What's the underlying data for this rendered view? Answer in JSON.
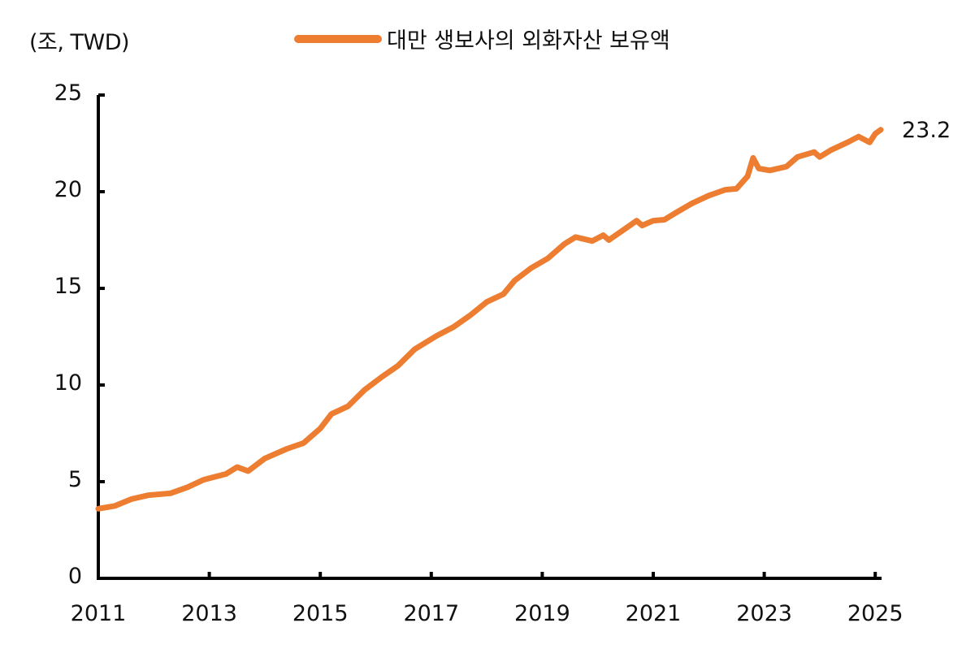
{
  "unit_label": "(조, TWD)",
  "legend": {
    "label": "대만 생보사의 외화자산 보유액",
    "color": "#ED7D31"
  },
  "end_label": "23.2",
  "y_ticks": [
    "0",
    "5",
    "10",
    "15",
    "20",
    "25"
  ],
  "x_ticks": [
    "2011",
    "2013",
    "2015",
    "2017",
    "2019",
    "2021",
    "2023",
    "2025"
  ],
  "chart_data": {
    "type": "line",
    "title": "",
    "xlabel": "",
    "ylabel": "(조, TWD)",
    "ylim": [
      0,
      25
    ],
    "xlim": [
      2011,
      2025.1
    ],
    "grid": false,
    "legend_position": "top",
    "x_tick_labels": [
      "2011",
      "2013",
      "2015",
      "2017",
      "2019",
      "2021",
      "2023",
      "2025"
    ],
    "y_tick_labels": [
      "0",
      "5",
      "10",
      "15",
      "20",
      "25"
    ],
    "annotations": [
      {
        "text": "23.2",
        "x": 2025.1,
        "y": 23.2
      }
    ],
    "series": [
      {
        "name": "대만 생보사의 외화자산 보유액",
        "color": "#ED7D31",
        "x": [
          2011.0,
          2011.3,
          2011.6,
          2011.9,
          2012.3,
          2012.6,
          2012.9,
          2013.3,
          2013.5,
          2013.7,
          2014.0,
          2014.4,
          2014.7,
          2015.0,
          2015.2,
          2015.5,
          2015.8,
          2016.1,
          2016.4,
          2016.7,
          2017.1,
          2017.4,
          2017.7,
          2018.0,
          2018.3,
          2018.5,
          2018.8,
          2019.1,
          2019.4,
          2019.6,
          2019.9,
          2020.1,
          2020.2,
          2020.5,
          2020.7,
          2020.8,
          2021.0,
          2021.2,
          2021.4,
          2021.7,
          2022.0,
          2022.3,
          2022.5,
          2022.7,
          2022.8,
          2022.9,
          2023.1,
          2023.4,
          2023.6,
          2023.9,
          2024.0,
          2024.2,
          2024.5,
          2024.7,
          2024.9,
          2025.0,
          2025.1
        ],
        "values": [
          3.6,
          3.75,
          4.1,
          4.3,
          4.4,
          4.7,
          5.1,
          5.4,
          5.75,
          5.55,
          6.2,
          6.7,
          7.0,
          7.75,
          8.5,
          8.9,
          9.75,
          10.4,
          11.0,
          11.85,
          12.55,
          13.0,
          13.6,
          14.3,
          14.7,
          15.4,
          16.05,
          16.55,
          17.3,
          17.65,
          17.45,
          17.75,
          17.5,
          18.1,
          18.5,
          18.25,
          18.5,
          18.55,
          18.9,
          19.4,
          19.8,
          20.1,
          20.15,
          20.8,
          21.75,
          21.2,
          21.1,
          21.3,
          21.8,
          22.05,
          21.8,
          22.15,
          22.55,
          22.85,
          22.55,
          23.0,
          23.2
        ]
      }
    ]
  }
}
